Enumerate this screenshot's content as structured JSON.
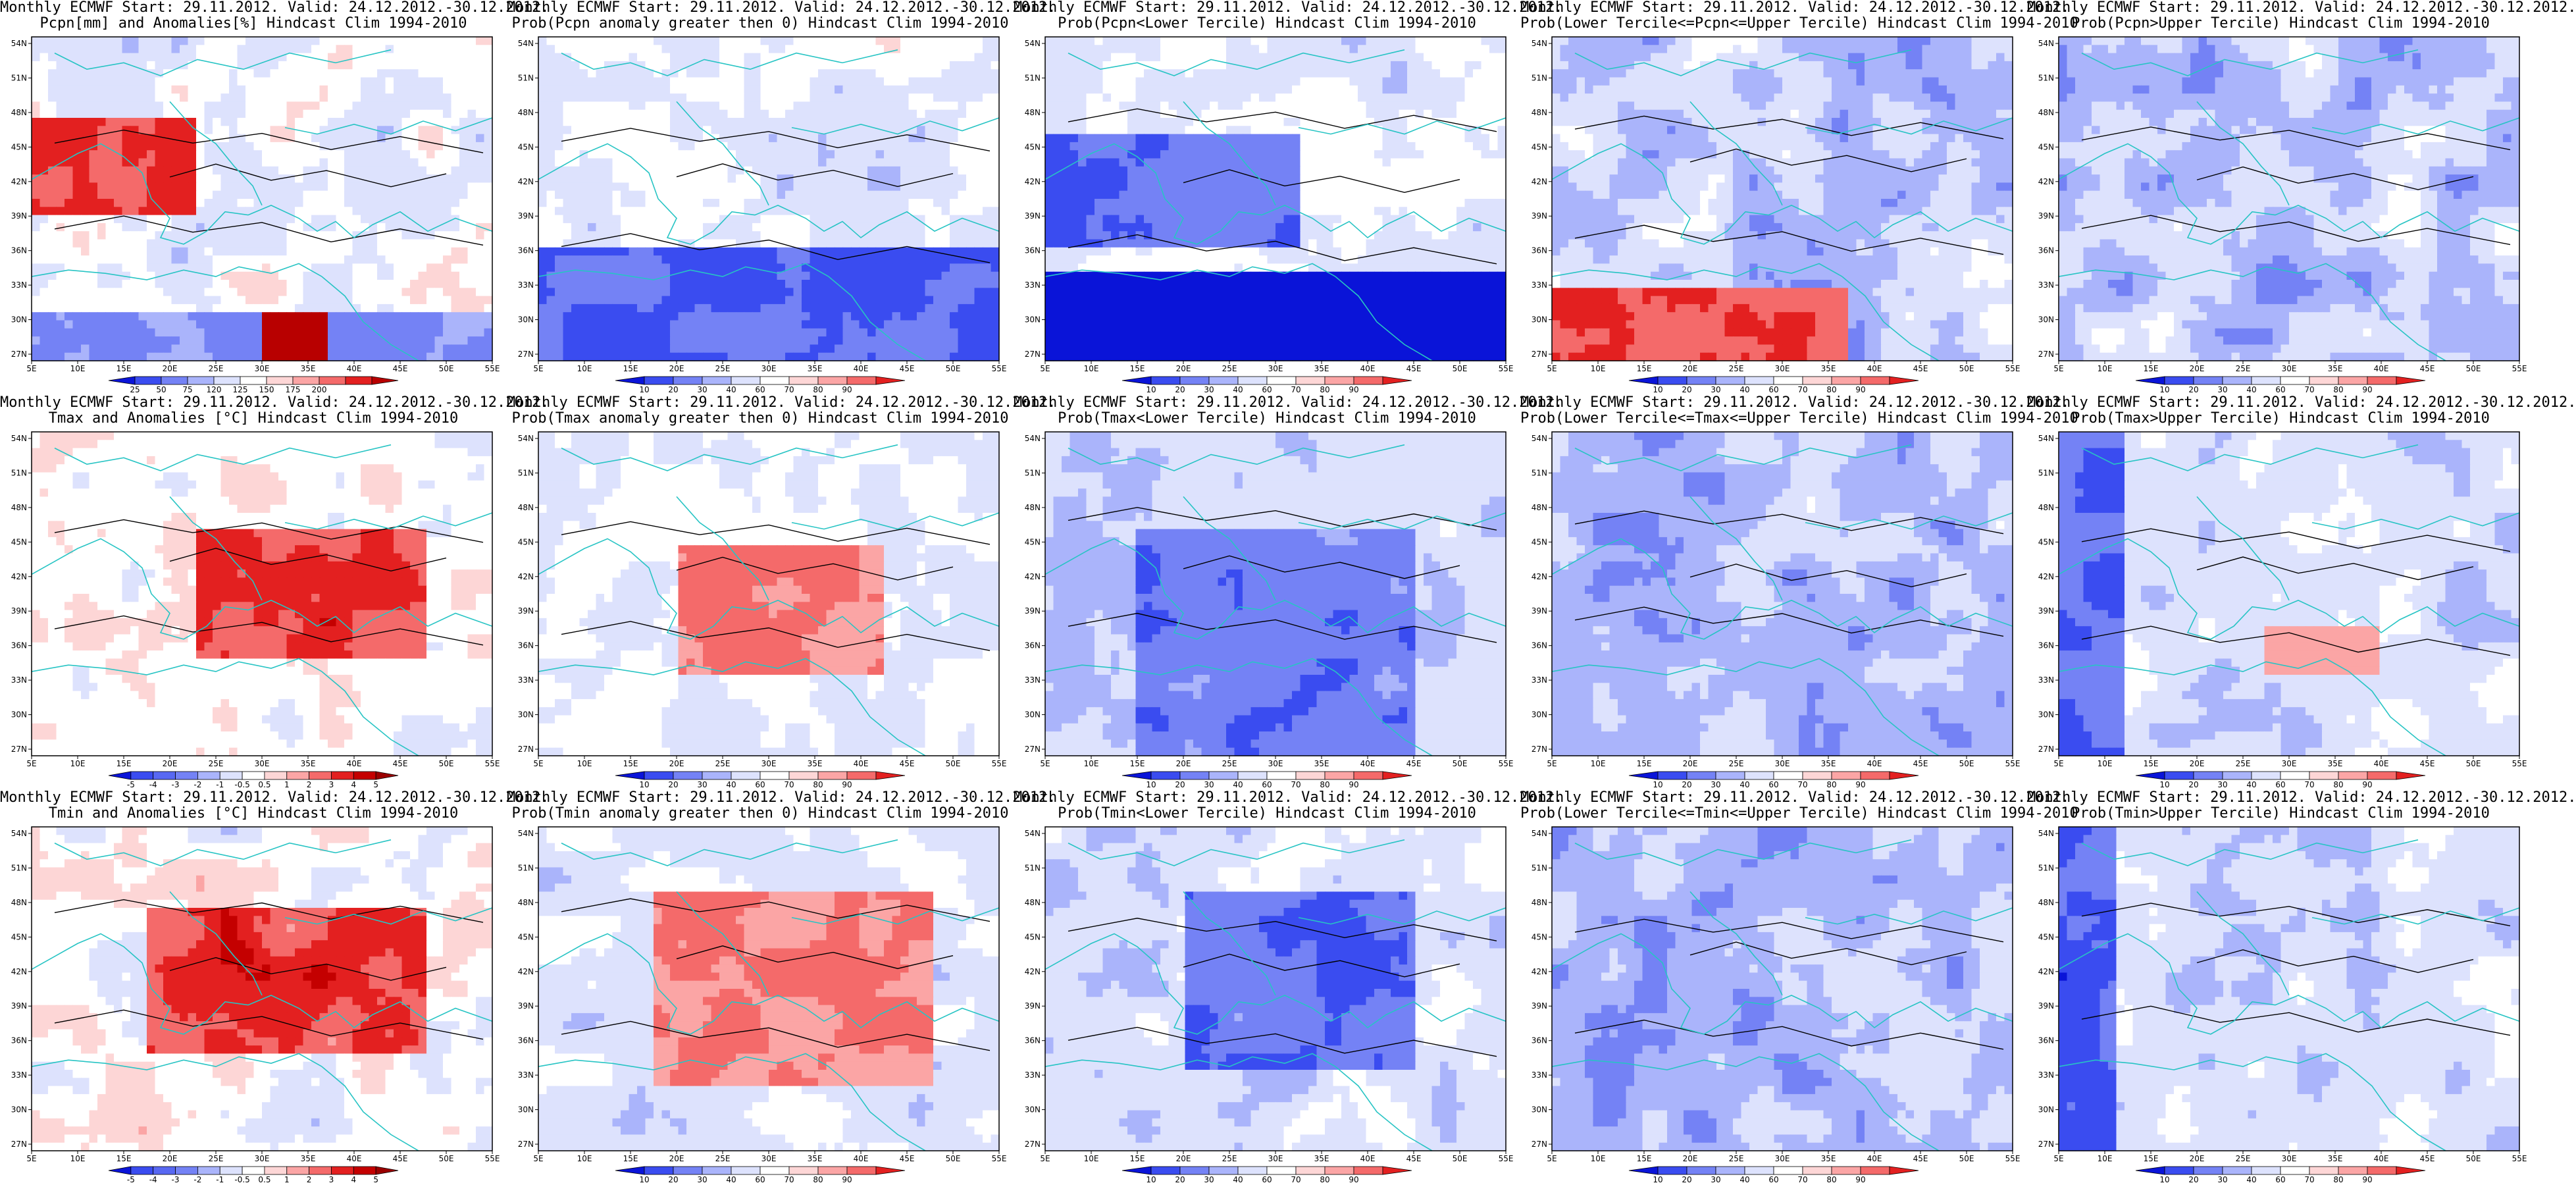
{
  "figure": {
    "x_ticks": [
      "5E",
      "10E",
      "15E",
      "20E",
      "25E",
      "30E",
      "35E",
      "40E",
      "45E",
      "50E",
      "55E"
    ],
    "y_ticks": [
      "54N",
      "51N",
      "48N",
      "45N",
      "42N",
      "39N",
      "36N",
      "33N",
      "30N",
      "27N"
    ],
    "coast_color": "#27c4c4",
    "contour_color": "#000000"
  },
  "panels": [
    {
      "id": "pcpn-anom",
      "title_line1": "Monthly ECMWF Start: 29.11.2012. Valid: 24.12.2012.-30.12.2012.",
      "title_line2": "Pcpn[mm] and Anomalies[%] Hindcast Clim 1994-2010",
      "field": "precip_anom",
      "colorbar": {
        "labels": [
          "25",
          "50",
          "75",
          "120",
          "125",
          "150",
          "175",
          "200"
        ],
        "colors": [
          "#0a14d8",
          "#3a4cf0",
          "#7482f5",
          "#aab4fb",
          "#dde2fd",
          "#ffffff",
          "#fdd6d6",
          "#fba5a5",
          "#f46a6a",
          "#e32020",
          "#b80000"
        ]
      }
    },
    {
      "id": "pcpn-prob-pos",
      "title_line1": "Monthly ECMWF Start: 29.11.2012. Valid: 24.12.2012.-30.12.2012.",
      "title_line2": "Prob(Pcpn anomaly greater then 0) Hindcast Clim 1994-2010",
      "field": "precip_prob",
      "colorbar": {
        "labels": [
          "10",
          "20",
          "30",
          "40",
          "60",
          "70",
          "80",
          "90"
        ],
        "colors": [
          "#0a14d8",
          "#3a4cf0",
          "#7482f5",
          "#aab4fb",
          "#dde2fd",
          "#ffffff",
          "#fdd6d6",
          "#fba5a5",
          "#f46a6a",
          "#e32020"
        ]
      }
    },
    {
      "id": "pcpn-lower",
      "title_line1": "Monthly ECMWF Start: 29.11.2012. Valid: 24.12.2012.-30.12.2012.",
      "title_line2": "Prob(Pcpn<Lower Tercile) Hindcast Clim 1994-2010",
      "field": "precip_lower",
      "colorbar": {
        "labels": [
          "10",
          "20",
          "30",
          "40",
          "60",
          "70",
          "80",
          "90"
        ],
        "colors": [
          "#0a14d8",
          "#3a4cf0",
          "#7482f5",
          "#aab4fb",
          "#dde2fd",
          "#ffffff",
          "#fdd6d6",
          "#fba5a5",
          "#f46a6a",
          "#e32020"
        ]
      }
    },
    {
      "id": "pcpn-middle",
      "title_line1": "Monthly ECMWF Start: 29.11.2012. Valid: 24.12.2012.-30.12.2012.",
      "title_line2": "Prob(Lower Tercile<=Pcpn<=Upper Tercile) Hindcast Clim 1994-2010",
      "field": "precip_mid",
      "colorbar": {
        "labels": [
          "10",
          "20",
          "30",
          "40",
          "60",
          "70",
          "80",
          "90"
        ],
        "colors": [
          "#0a14d8",
          "#3a4cf0",
          "#7482f5",
          "#aab4fb",
          "#dde2fd",
          "#ffffff",
          "#fdd6d6",
          "#fba5a5",
          "#f46a6a",
          "#e32020"
        ]
      }
    },
    {
      "id": "pcpn-upper",
      "title_line1": "Monthly ECMWF Start: 29.11.2012. Valid: 24.12.2012.-30.12.2012.",
      "title_line2": "Prob(Pcpn>Upper Tercile) Hindcast Clim 1994-2010",
      "field": "precip_upper",
      "colorbar": {
        "labels": [
          "10",
          "20",
          "30",
          "40",
          "60",
          "70",
          "80",
          "90"
        ],
        "colors": [
          "#0a14d8",
          "#3a4cf0",
          "#7482f5",
          "#aab4fb",
          "#dde2fd",
          "#ffffff",
          "#fdd6d6",
          "#fba5a5",
          "#f46a6a",
          "#e32020"
        ]
      }
    },
    {
      "id": "tmax-anom",
      "title_line1": "Monthly ECMWF Start: 29.11.2012. Valid: 24.12.2012.-30.12.2012.",
      "title_line2": "Tmax and Anomalies [°C] Hindcast Clim 1994-2010",
      "field": "tmax_anom",
      "colorbar": {
        "labels": [
          "-5",
          "-4",
          "-3",
          "-2",
          "-1",
          "-0.5",
          "0.5",
          "1",
          "2",
          "3",
          "4",
          "5"
        ],
        "colors": [
          "#0a14d8",
          "#3a4cf0",
          "#5868f2",
          "#7482f5",
          "#aab4fb",
          "#dde2fd",
          "#ffffff",
          "#fdd6d6",
          "#fba5a5",
          "#f46a6a",
          "#e32020",
          "#c40000",
          "#9a0000"
        ]
      }
    },
    {
      "id": "tmax-prob-pos",
      "title_line1": "Monthly ECMWF Start: 29.11.2012. Valid: 24.12.2012.-30.12.2012.",
      "title_line2": "Prob(Tmax anomaly greater then 0) Hindcast Clim 1994-2010",
      "field": "tmax_prob",
      "colorbar": {
        "labels": [
          "10",
          "20",
          "30",
          "40",
          "60",
          "70",
          "80",
          "90"
        ],
        "colors": [
          "#0a14d8",
          "#3a4cf0",
          "#7482f5",
          "#aab4fb",
          "#dde2fd",
          "#ffffff",
          "#fdd6d6",
          "#fba5a5",
          "#f46a6a",
          "#e32020"
        ]
      }
    },
    {
      "id": "tmax-lower",
      "title_line1": "Monthly ECMWF Start: 29.11.2012. Valid: 24.12.2012.-30.12.2012.",
      "title_line2": "Prob(Tmax<Lower Tercile) Hindcast Clim 1994-2010",
      "field": "tmax_lower",
      "colorbar": {
        "labels": [
          "10",
          "20",
          "30",
          "40",
          "60",
          "70",
          "80",
          "90"
        ],
        "colors": [
          "#0a14d8",
          "#3a4cf0",
          "#7482f5",
          "#aab4fb",
          "#dde2fd",
          "#ffffff",
          "#fdd6d6",
          "#fba5a5",
          "#f46a6a",
          "#e32020"
        ]
      }
    },
    {
      "id": "tmax-middle",
      "title_line1": "Monthly ECMWF Start: 29.11.2012. Valid: 24.12.2012.-30.12.2012.",
      "title_line2": "Prob(Lower Tercile<=Tmax<=Upper Tercile) Hindcast Clim 1994-2010",
      "field": "tmax_mid",
      "colorbar": {
        "labels": [
          "10",
          "20",
          "30",
          "40",
          "60",
          "70",
          "80",
          "90"
        ],
        "colors": [
          "#0a14d8",
          "#3a4cf0",
          "#7482f5",
          "#aab4fb",
          "#dde2fd",
          "#ffffff",
          "#fdd6d6",
          "#fba5a5",
          "#f46a6a",
          "#e32020"
        ]
      }
    },
    {
      "id": "tmax-upper",
      "title_line1": "Monthly ECMWF Start: 29.11.2012. Valid: 24.12.2012.-30.12.2012.",
      "title_line2": "Prob(Tmax>Upper Tercile) Hindcast Clim 1994-2010",
      "field": "tmax_upper",
      "colorbar": {
        "labels": [
          "10",
          "20",
          "30",
          "40",
          "60",
          "70",
          "80",
          "90"
        ],
        "colors": [
          "#0a14d8",
          "#3a4cf0",
          "#7482f5",
          "#aab4fb",
          "#dde2fd",
          "#ffffff",
          "#fdd6d6",
          "#fba5a5",
          "#f46a6a",
          "#e32020"
        ]
      }
    },
    {
      "id": "tmin-anom",
      "title_line1": "Monthly ECMWF Start: 29.11.2012. Valid: 24.12.2012.-30.12.2012.",
      "title_line2": "Tmin and Anomalies [°C] Hindcast Clim 1994-2010",
      "field": "tmin_anom",
      "colorbar": {
        "labels": [
          "-5",
          "-4",
          "-3",
          "-2",
          "-1",
          "-0.5",
          "0.5",
          "1",
          "2",
          "3",
          "4",
          "5"
        ],
        "colors": [
          "#0a14d8",
          "#3a4cf0",
          "#5868f2",
          "#7482f5",
          "#aab4fb",
          "#dde2fd",
          "#ffffff",
          "#fdd6d6",
          "#fba5a5",
          "#f46a6a",
          "#e32020",
          "#c40000",
          "#9a0000"
        ]
      }
    },
    {
      "id": "tmin-prob-pos",
      "title_line1": "Monthly ECMWF Start: 29.11.2012. Valid: 24.12.2012.-30.12.2012.",
      "title_line2": "Prob(Tmin anomaly greater then 0) Hindcast Clim 1994-2010",
      "field": "tmin_prob",
      "colorbar": {
        "labels": [
          "10",
          "20",
          "30",
          "40",
          "60",
          "70",
          "80",
          "90"
        ],
        "colors": [
          "#0a14d8",
          "#3a4cf0",
          "#7482f5",
          "#aab4fb",
          "#dde2fd",
          "#ffffff",
          "#fdd6d6",
          "#fba5a5",
          "#f46a6a",
          "#e32020"
        ]
      }
    },
    {
      "id": "tmin-lower",
      "title_line1": "Monthly ECMWF Start: 29.11.2012. Valid: 24.12.2012.-30.12.2012.",
      "title_line2": "Prob(Tmin<Lower Tercile) Hindcast Clim 1994-2010",
      "field": "tmin_lower",
      "colorbar": {
        "labels": [
          "10",
          "20",
          "30",
          "40",
          "60",
          "70",
          "80",
          "90"
        ],
        "colors": [
          "#0a14d8",
          "#3a4cf0",
          "#7482f5",
          "#aab4fb",
          "#dde2fd",
          "#ffffff",
          "#fdd6d6",
          "#fba5a5",
          "#f46a6a",
          "#e32020"
        ]
      }
    },
    {
      "id": "tmin-middle",
      "title_line1": "Monthly ECMWF Start: 29.11.2012. Valid: 24.12.2012.-30.12.2012.",
      "title_line2": "Prob(Lower Tercile<=Tmin<=Upper Tercile) Hindcast Clim 1994-2010",
      "field": "tmin_mid",
      "colorbar": {
        "labels": [
          "10",
          "20",
          "30",
          "40",
          "60",
          "70",
          "80",
          "90"
        ],
        "colors": [
          "#0a14d8",
          "#3a4cf0",
          "#7482f5",
          "#aab4fb",
          "#dde2fd",
          "#ffffff",
          "#fdd6d6",
          "#fba5a5",
          "#f46a6a",
          "#e32020"
        ]
      }
    },
    {
      "id": "tmin-upper",
      "title_line1": "Monthly ECMWF Start: 29.11.2012. Valid: 24.12.2012.-30.12.2012.",
      "title_line2": "Prob(Tmin>Upper Tercile) Hindcast Clim 1994-2010",
      "field": "tmin_upper",
      "colorbar": {
        "labels": [
          "10",
          "20",
          "30",
          "40",
          "60",
          "70",
          "80",
          "90"
        ],
        "colors": [
          "#0a14d8",
          "#3a4cf0",
          "#7482f5",
          "#aab4fb",
          "#dde2fd",
          "#ffffff",
          "#fdd6d6",
          "#fba5a5",
          "#f46a6a",
          "#e32020"
        ]
      }
    }
  ]
}
